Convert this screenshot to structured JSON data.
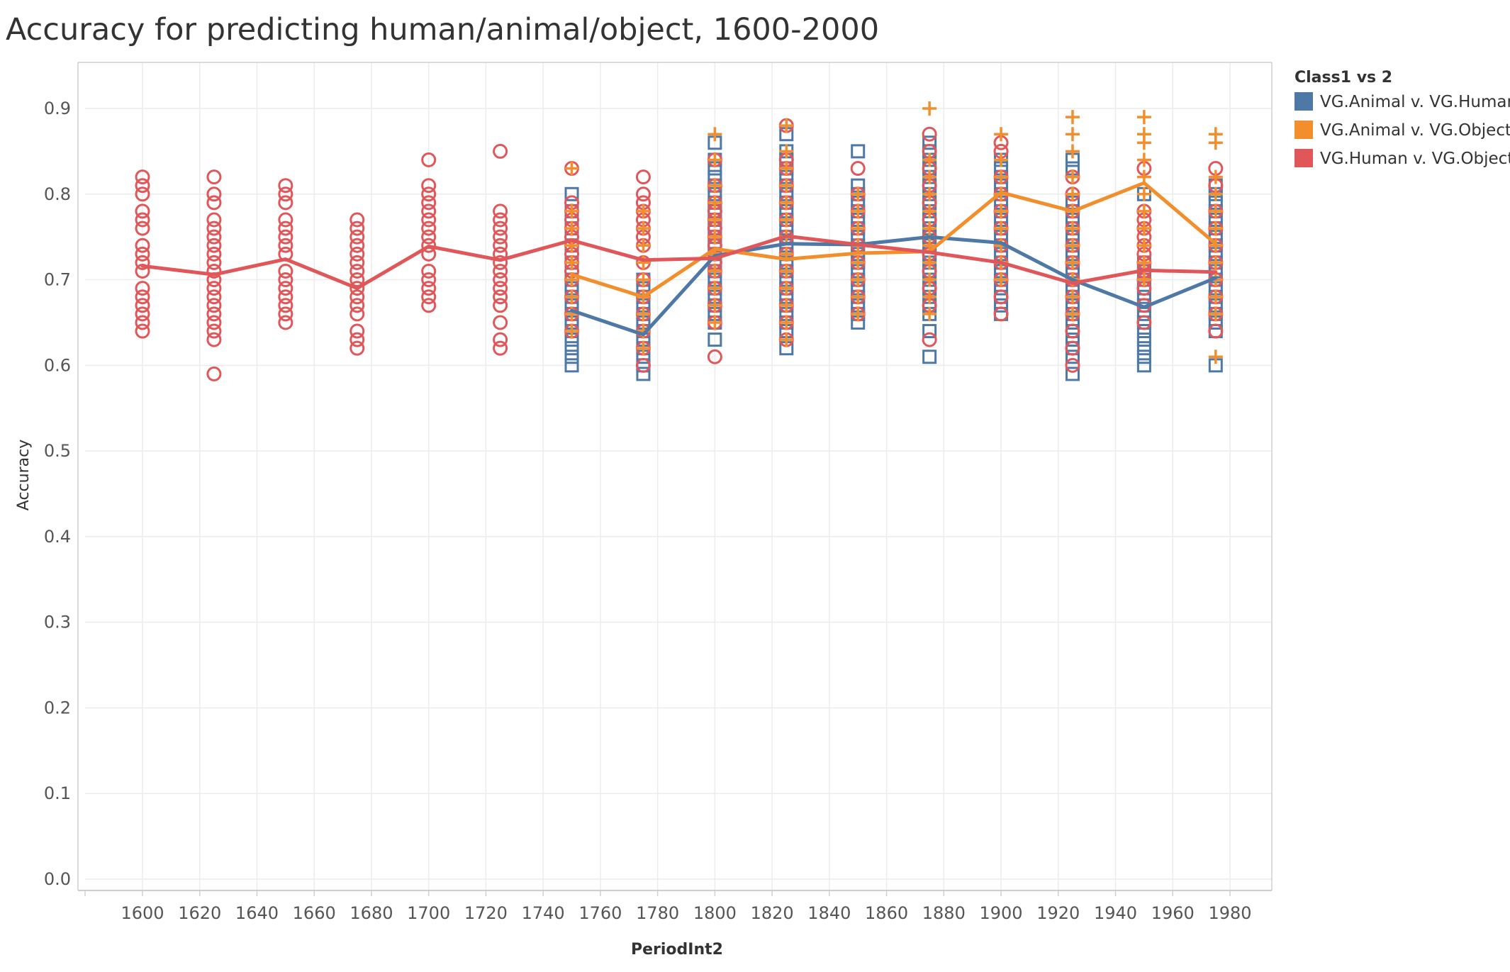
{
  "colors": {
    "VG.Animal v. VG.Human": "#4e79a7",
    "VG.Animal v. VG.Object": "#f28e2b",
    "VG.Human v. VG.Object": "#e15759"
  },
  "chart_data": {
    "type": "line",
    "title": "Accuracy for predicting human/animal/object, 1600-2000",
    "xlabel": "PeriodInt2",
    "ylabel": "Accuracy",
    "xlim": [
      1580,
      1995
    ],
    "ylim": [
      0,
      0.95
    ],
    "x_ticks": [
      1600,
      1620,
      1640,
      1660,
      1680,
      1700,
      1720,
      1740,
      1760,
      1780,
      1800,
      1820,
      1840,
      1860,
      1880,
      1900,
      1920,
      1940,
      1960,
      1980
    ],
    "y_ticks": [
      0.0,
      0.1,
      0.2,
      0.3,
      0.4,
      0.5,
      0.6,
      0.7,
      0.8,
      0.9
    ],
    "y_tick_labels": [
      "0.0",
      "0.1",
      "0.2",
      "0.3",
      "0.4",
      "0.5",
      "0.6",
      "0.7",
      "0.8",
      "0.9"
    ],
    "grid": true,
    "legend": {
      "title": "Class1 vs 2",
      "position": "right",
      "entries": [
        "VG.Animal v. VG.Human",
        "VG.Animal v. VG.Object",
        "VG.Human v. VG.Object"
      ]
    },
    "series": [
      {
        "name": "VG.Animal v. VG.Human",
        "marker": "square",
        "line": {
          "x": [
            1750,
            1775,
            1800,
            1825,
            1850,
            1875,
            1900,
            1925,
            1950,
            1975
          ],
          "y": [
            0.664,
            0.636,
            0.728,
            0.742,
            0.741,
            0.75,
            0.743,
            0.7,
            0.668,
            0.702
          ]
        },
        "points": [
          {
            "x": 1750,
            "y": [
              0.6,
              0.61,
              0.62,
              0.63,
              0.64,
              0.65,
              0.66,
              0.67,
              0.68,
              0.69,
              0.7,
              0.72,
              0.74,
              0.76,
              0.78,
              0.8
            ]
          },
          {
            "x": 1775,
            "y": [
              0.59,
              0.6,
              0.61,
              0.62,
              0.63,
              0.64,
              0.65,
              0.66,
              0.67,
              0.68,
              0.69,
              0.7
            ]
          },
          {
            "x": 1800,
            "y": [
              0.63,
              0.65,
              0.66,
              0.67,
              0.68,
              0.69,
              0.7,
              0.71,
              0.72,
              0.73,
              0.74,
              0.75,
              0.76,
              0.77,
              0.78,
              0.79,
              0.8,
              0.81,
              0.82,
              0.83,
              0.84,
              0.86
            ]
          },
          {
            "x": 1825,
            "y": [
              0.62,
              0.64,
              0.65,
              0.66,
              0.67,
              0.68,
              0.69,
              0.7,
              0.71,
              0.72,
              0.73,
              0.74,
              0.75,
              0.76,
              0.77,
              0.78,
              0.79,
              0.8,
              0.81,
              0.82,
              0.83,
              0.84,
              0.85,
              0.87
            ]
          },
          {
            "x": 1850,
            "y": [
              0.65,
              0.66,
              0.67,
              0.68,
              0.69,
              0.7,
              0.71,
              0.72,
              0.73,
              0.74,
              0.75,
              0.76,
              0.77,
              0.78,
              0.79,
              0.8,
              0.81,
              0.85
            ]
          },
          {
            "x": 1875,
            "y": [
              0.61,
              0.64,
              0.66,
              0.67,
              0.68,
              0.69,
              0.7,
              0.71,
              0.72,
              0.73,
              0.74,
              0.75,
              0.76,
              0.77,
              0.78,
              0.79,
              0.8,
              0.81,
              0.82,
              0.83,
              0.84,
              0.85,
              0.86
            ]
          },
          {
            "x": 1900,
            "y": [
              0.66,
              0.67,
              0.68,
              0.69,
              0.7,
              0.71,
              0.72,
              0.73,
              0.74,
              0.75,
              0.76,
              0.77,
              0.78,
              0.79,
              0.8,
              0.81,
              0.82,
              0.83,
              0.84
            ]
          },
          {
            "x": 1925,
            "y": [
              0.59,
              0.61,
              0.62,
              0.63,
              0.64,
              0.65,
              0.66,
              0.67,
              0.68,
              0.69,
              0.7,
              0.71,
              0.72,
              0.73,
              0.74,
              0.75,
              0.76,
              0.77,
              0.78,
              0.79,
              0.83,
              0.84
            ]
          },
          {
            "x": 1950,
            "y": [
              0.6,
              0.61,
              0.62,
              0.63,
              0.64,
              0.65,
              0.66,
              0.67,
              0.68,
              0.69,
              0.7,
              0.71,
              0.72,
              0.8
            ]
          },
          {
            "x": 1975,
            "y": [
              0.6,
              0.64,
              0.65,
              0.66,
              0.67,
              0.68,
              0.69,
              0.7,
              0.71,
              0.72,
              0.73,
              0.74,
              0.75,
              0.76,
              0.77,
              0.78,
              0.79,
              0.8,
              0.81
            ]
          }
        ]
      },
      {
        "name": "VG.Animal v. VG.Object",
        "marker": "plus",
        "line": {
          "x": [
            1750,
            1775,
            1800,
            1825,
            1850,
            1875,
            1900,
            1925,
            1950,
            1975
          ],
          "y": [
            0.706,
            0.68,
            0.736,
            0.724,
            0.731,
            0.733,
            0.802,
            0.78,
            0.813,
            0.742
          ]
        },
        "points": [
          {
            "x": 1750,
            "y": [
              0.64,
              0.66,
              0.68,
              0.7,
              0.72,
              0.74,
              0.76,
              0.78,
              0.83
            ]
          },
          {
            "x": 1775,
            "y": [
              0.62,
              0.64,
              0.66,
              0.68,
              0.7,
              0.72,
              0.74,
              0.76,
              0.78
            ]
          },
          {
            "x": 1800,
            "y": [
              0.65,
              0.67,
              0.69,
              0.71,
              0.73,
              0.75,
              0.77,
              0.79,
              0.81,
              0.84,
              0.87
            ]
          },
          {
            "x": 1825,
            "y": [
              0.63,
              0.65,
              0.67,
              0.69,
              0.71,
              0.73,
              0.75,
              0.77,
              0.79,
              0.81,
              0.83,
              0.85,
              0.88
            ]
          },
          {
            "x": 1850,
            "y": [
              0.66,
              0.68,
              0.7,
              0.72,
              0.74,
              0.76,
              0.78,
              0.8
            ]
          },
          {
            "x": 1875,
            "y": [
              0.66,
              0.68,
              0.7,
              0.72,
              0.74,
              0.76,
              0.78,
              0.8,
              0.82,
              0.84,
              0.9
            ]
          },
          {
            "x": 1900,
            "y": [
              0.7,
              0.72,
              0.74,
              0.76,
              0.78,
              0.8,
              0.82,
              0.84,
              0.87
            ]
          },
          {
            "x": 1925,
            "y": [
              0.66,
              0.68,
              0.7,
              0.72,
              0.74,
              0.76,
              0.78,
              0.8,
              0.82,
              0.85,
              0.87,
              0.89
            ]
          },
          {
            "x": 1950,
            "y": [
              0.7,
              0.72,
              0.74,
              0.76,
              0.78,
              0.8,
              0.82,
              0.84,
              0.86,
              0.87,
              0.89
            ]
          },
          {
            "x": 1975,
            "y": [
              0.61,
              0.66,
              0.68,
              0.7,
              0.72,
              0.74,
              0.76,
              0.78,
              0.8,
              0.82,
              0.86,
              0.87
            ]
          }
        ]
      },
      {
        "name": "VG.Human v. VG.Object",
        "marker": "circle",
        "line": {
          "x": [
            1600,
            1625,
            1650,
            1675,
            1700,
            1725,
            1750,
            1775,
            1800,
            1825,
            1850,
            1875,
            1900,
            1925,
            1950,
            1975
          ],
          "y": [
            0.716,
            0.706,
            0.724,
            0.69,
            0.739,
            0.723,
            0.746,
            0.723,
            0.725,
            0.751,
            0.741,
            0.732,
            0.72,
            0.696,
            0.711,
            0.709
          ]
        },
        "points": [
          {
            "x": 1600,
            "y": [
              0.64,
              0.65,
              0.66,
              0.67,
              0.68,
              0.69,
              0.71,
              0.72,
              0.73,
              0.74,
              0.76,
              0.77,
              0.78,
              0.8,
              0.81,
              0.82
            ]
          },
          {
            "x": 1625,
            "y": [
              0.59,
              0.63,
              0.64,
              0.65,
              0.66,
              0.67,
              0.68,
              0.69,
              0.7,
              0.71,
              0.72,
              0.73,
              0.74,
              0.75,
              0.76,
              0.77,
              0.79,
              0.8,
              0.82
            ]
          },
          {
            "x": 1650,
            "y": [
              0.65,
              0.66,
              0.67,
              0.68,
              0.69,
              0.7,
              0.71,
              0.73,
              0.74,
              0.75,
              0.76,
              0.77,
              0.79,
              0.8,
              0.81
            ]
          },
          {
            "x": 1675,
            "y": [
              0.62,
              0.63,
              0.64,
              0.66,
              0.67,
              0.68,
              0.69,
              0.7,
              0.71,
              0.72,
              0.73,
              0.74,
              0.75,
              0.76,
              0.77
            ]
          },
          {
            "x": 1700,
            "y": [
              0.67,
              0.68,
              0.69,
              0.7,
              0.71,
              0.73,
              0.74,
              0.75,
              0.76,
              0.77,
              0.78,
              0.79,
              0.8,
              0.81,
              0.84
            ]
          },
          {
            "x": 1725,
            "y": [
              0.62,
              0.63,
              0.65,
              0.67,
              0.68,
              0.69,
              0.7,
              0.71,
              0.72,
              0.73,
              0.74,
              0.75,
              0.76,
              0.77,
              0.78,
              0.85
            ]
          },
          {
            "x": 1750,
            "y": [
              0.64,
              0.66,
              0.68,
              0.7,
              0.71,
              0.72,
              0.73,
              0.74,
              0.75,
              0.76,
              0.77,
              0.78,
              0.79,
              0.83
            ]
          },
          {
            "x": 1775,
            "y": [
              0.6,
              0.62,
              0.64,
              0.66,
              0.68,
              0.7,
              0.72,
              0.74,
              0.75,
              0.76,
              0.77,
              0.78,
              0.79,
              0.8,
              0.82
            ]
          },
          {
            "x": 1800,
            "y": [
              0.61,
              0.65,
              0.67,
              0.69,
              0.71,
              0.72,
              0.73,
              0.74,
              0.75,
              0.76,
              0.77,
              0.78,
              0.79,
              0.81,
              0.84
            ]
          },
          {
            "x": 1825,
            "y": [
              0.63,
              0.65,
              0.67,
              0.69,
              0.71,
              0.73,
              0.75,
              0.77,
              0.79,
              0.81,
              0.83,
              0.84,
              0.88
            ]
          },
          {
            "x": 1850,
            "y": [
              0.66,
              0.68,
              0.7,
              0.72,
              0.74,
              0.76,
              0.78,
              0.8,
              0.83
            ]
          },
          {
            "x": 1875,
            "y": [
              0.63,
              0.67,
              0.69,
              0.71,
              0.73,
              0.75,
              0.77,
              0.79,
              0.81,
              0.83,
              0.85,
              0.87
            ]
          },
          {
            "x": 1900,
            "y": [
              0.66,
              0.68,
              0.7,
              0.72,
              0.74,
              0.76,
              0.78,
              0.8,
              0.82,
              0.85,
              0.86
            ]
          },
          {
            "x": 1925,
            "y": [
              0.6,
              0.62,
              0.64,
              0.66,
              0.68,
              0.7,
              0.72,
              0.74,
              0.76,
              0.78,
              0.8,
              0.82
            ]
          },
          {
            "x": 1950,
            "y": [
              0.65,
              0.67,
              0.69,
              0.7,
              0.71,
              0.72,
              0.73,
              0.74,
              0.75,
              0.76,
              0.77,
              0.78,
              0.83
            ]
          },
          {
            "x": 1975,
            "y": [
              0.64,
              0.66,
              0.68,
              0.7,
              0.72,
              0.74,
              0.76,
              0.78,
              0.81,
              0.83
            ]
          }
        ]
      }
    ]
  }
}
